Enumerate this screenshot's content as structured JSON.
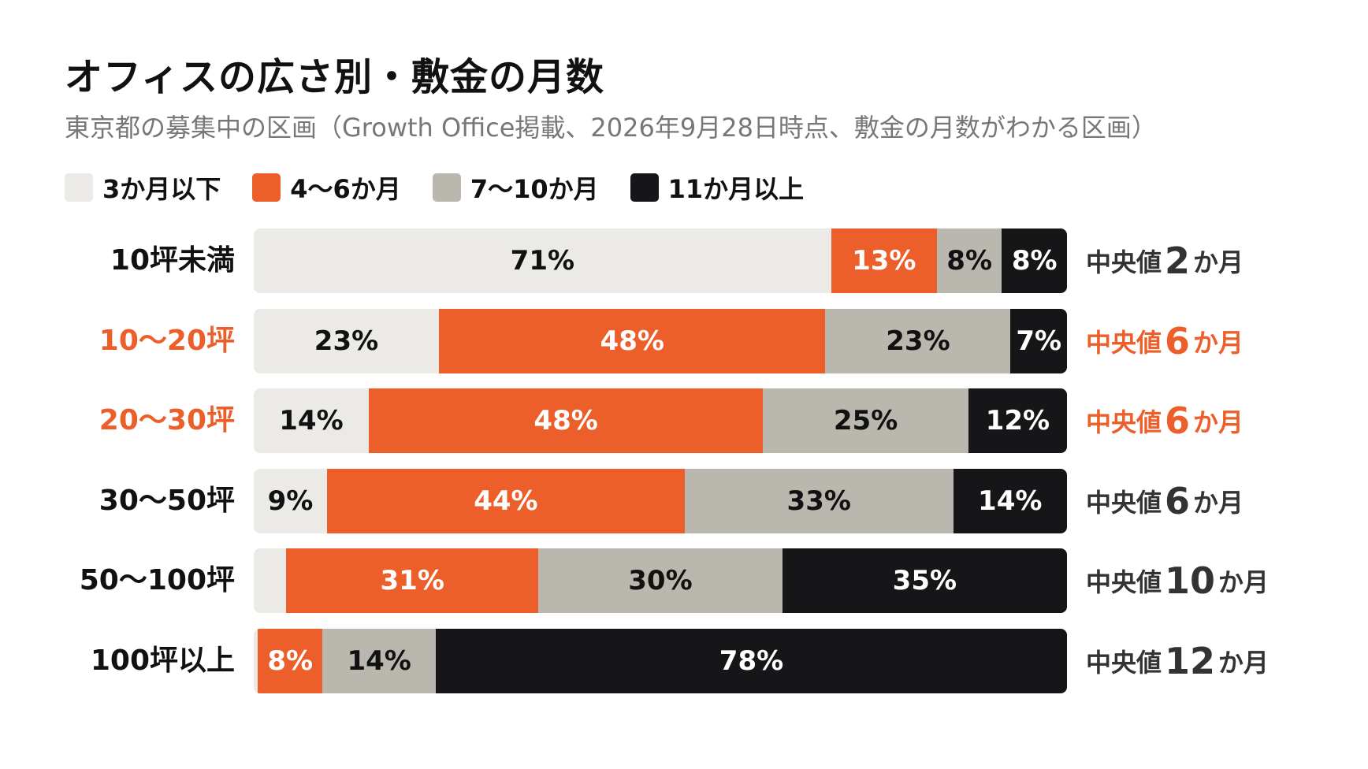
{
  "colors": {
    "le3": "#ebeae6",
    "m4to6": "#ec5f2a",
    "m7to10": "#b9b7ae",
    "ge11": "#161619",
    "highlight": "#ec5f2a",
    "text": "#111111",
    "subtitle": "#777777"
  },
  "chart_data": {
    "type": "bar",
    "orientation": "horizontal",
    "stacked": true,
    "normalized_percent": true,
    "title": "オフィスの広さ別・敷金の月数",
    "subtitle": "東京都の募集中の区画（Growth Office掲載、2026年9月28日時点、敷金の月数がわかる区画）",
    "legend_position": "top-left",
    "grid": false,
    "xlim": [
      0,
      100
    ],
    "categories": [
      "10坪未満",
      "10〜20坪",
      "20〜30坪",
      "30〜50坪",
      "50〜100坪",
      "100坪以上"
    ],
    "highlighted_categories": [
      "10〜20坪",
      "20〜30坪"
    ],
    "series": [
      {
        "name": "3か月以下",
        "color": "#ebeae6",
        "values": [
          71,
          23,
          14,
          9,
          4,
          0.5
        ],
        "labels": [
          "71%",
          "23%",
          "14%",
          "9%",
          "",
          ""
        ]
      },
      {
        "name": "4〜6か月",
        "color": "#ec5f2a",
        "values": [
          13,
          48,
          48,
          44,
          31,
          8
        ],
        "labels": [
          "13%",
          "48%",
          "48%",
          "44%",
          "31%",
          "8%"
        ]
      },
      {
        "name": "7〜10か月",
        "color": "#b9b7ae",
        "values": [
          8,
          23,
          25,
          33,
          30,
          14
        ],
        "labels": [
          "8%",
          "23%",
          "25%",
          "33%",
          "30%",
          "14%"
        ]
      },
      {
        "name": "11か月以上",
        "color": "#161619",
        "values": [
          8,
          7,
          12,
          14,
          35,
          78
        ],
        "labels": [
          "8%",
          "7%",
          "12%",
          "14%",
          "35%",
          "78%"
        ]
      }
    ],
    "medians": [
      {
        "prefix": "中央値",
        "value": "2",
        "unit": "か月"
      },
      {
        "prefix": "中央値",
        "value": "6",
        "unit": "か月"
      },
      {
        "prefix": "中央値",
        "value": "6",
        "unit": "か月"
      },
      {
        "prefix": "中央値",
        "value": "6",
        "unit": "か月"
      },
      {
        "prefix": "中央値",
        "value": "10",
        "unit": "か月"
      },
      {
        "prefix": "中央値",
        "value": "12",
        "unit": "か月"
      }
    ]
  }
}
